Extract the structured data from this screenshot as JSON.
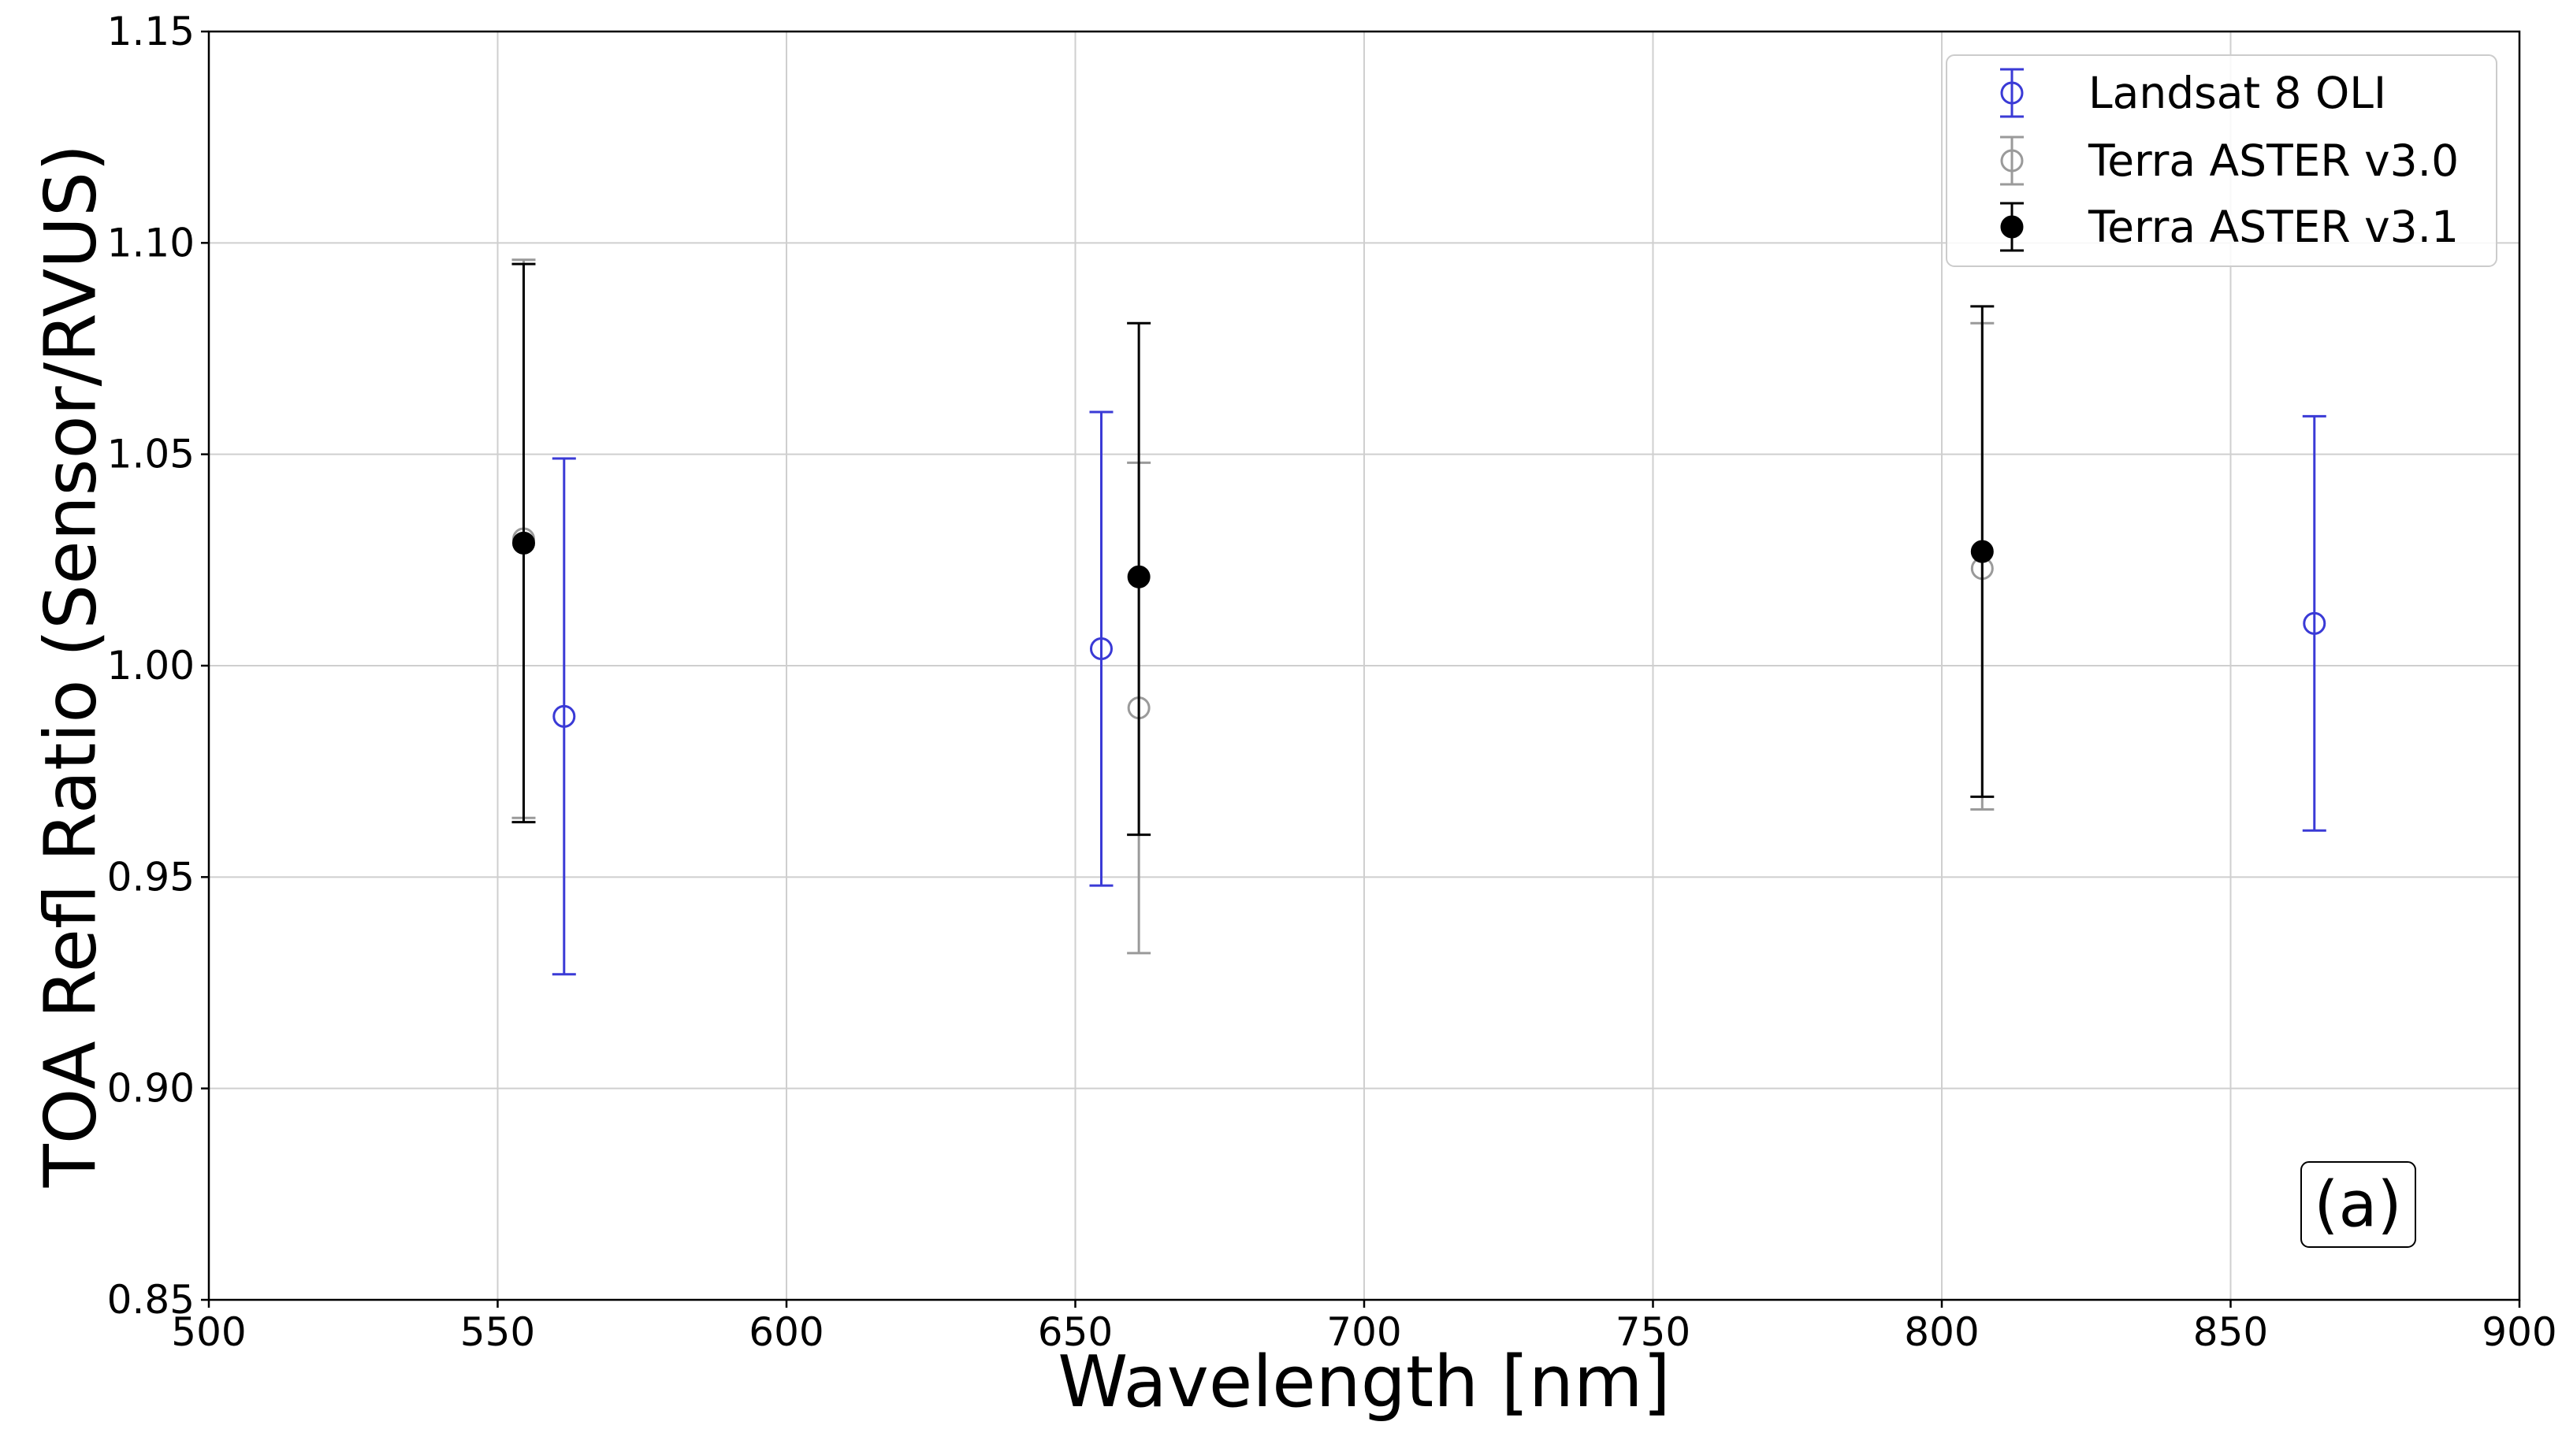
{
  "chart_data": {
    "type": "scatter",
    "xlabel": "Wavelength [nm]",
    "ylabel": "TOA Refl Ratio (Sensor/RVUS)",
    "xlim": [
      500,
      900
    ],
    "ylim": [
      0.85,
      1.15
    ],
    "xticks": [
      500,
      550,
      600,
      650,
      700,
      750,
      800,
      850,
      900
    ],
    "yticks": [
      0.85,
      0.9,
      0.95,
      1.0,
      1.05,
      1.1,
      1.15
    ],
    "xtick_labels": [
      "500",
      "550",
      "600",
      "650",
      "700",
      "750",
      "800",
      "850",
      "900"
    ],
    "ytick_labels": [
      "0.85",
      "0.90",
      "0.95",
      "1.00",
      "1.05",
      "1.10",
      "1.15"
    ],
    "grid": true,
    "legend_position": "top-right",
    "annotation": "(a)",
    "series": [
      {
        "name": "Landsat 8 OLI",
        "color": "#3a3ad6",
        "marker": "open-circle",
        "points": [
          {
            "x": 561.5,
            "y": 0.988,
            "low": 0.927,
            "high": 1.049
          },
          {
            "x": 654.5,
            "y": 1.004,
            "low": 0.948,
            "high": 1.06
          },
          {
            "x": 864.5,
            "y": 1.01,
            "low": 0.961,
            "high": 1.059
          }
        ]
      },
      {
        "name": "Terra ASTER v3.0",
        "color": "#9a9a9a",
        "marker": "open-circle",
        "points": [
          {
            "x": 554.5,
            "y": 1.03,
            "low": 0.964,
            "high": 1.096
          },
          {
            "x": 661.0,
            "y": 0.99,
            "low": 0.932,
            "high": 1.048
          },
          {
            "x": 807.0,
            "y": 1.023,
            "low": 0.966,
            "high": 1.081
          }
        ]
      },
      {
        "name": "Terra ASTER v3.1",
        "color": "#000000",
        "marker": "filled-circle",
        "points": [
          {
            "x": 554.5,
            "y": 1.029,
            "low": 0.963,
            "high": 1.095
          },
          {
            "x": 661.0,
            "y": 1.021,
            "low": 0.96,
            "high": 1.081
          },
          {
            "x": 807.0,
            "y": 1.027,
            "low": 0.969,
            "high": 1.085
          }
        ]
      }
    ]
  }
}
